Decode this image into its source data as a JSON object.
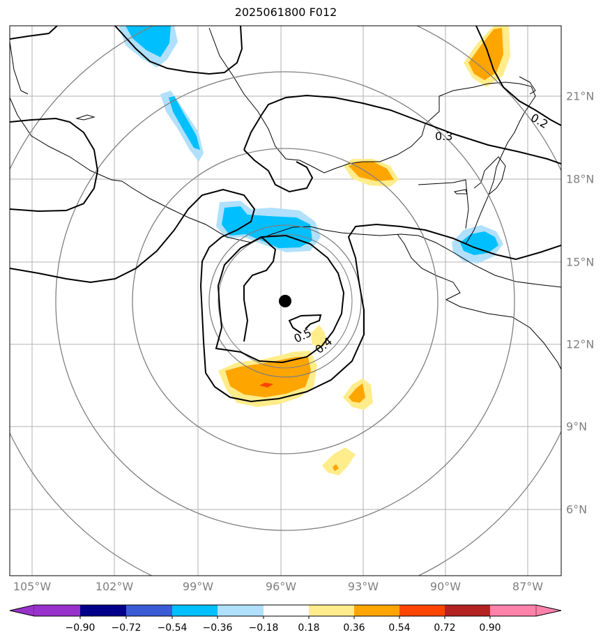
{
  "title": "2025061800 F012",
  "lon_labels": [
    "105°W",
    "102°W",
    "99°W",
    "96°W",
    "93°W",
    "90°W",
    "87°W"
  ],
  "lat_labels": [
    "21°N",
    "18°N",
    "15°N",
    "12°N",
    "9°N",
    "6°N"
  ],
  "contour_labels": [
    "0.2",
    "0.3",
    "0.5",
    "0.4"
  ],
  "colorbar": {
    "ticks": [
      "−0.90",
      "−0.72",
      "−0.54",
      "−0.36",
      "−0.18",
      "0.18",
      "0.36",
      "0.54",
      "0.72",
      "0.90"
    ],
    "colors": [
      "#9932cc",
      "#00008b",
      "#3b5bd6",
      "#00bfff",
      "#b0e0fb",
      "#ffffff",
      "#ffec8b",
      "#ffa500",
      "#ff4500",
      "#b22222",
      "#ff82ab"
    ]
  },
  "storm_center": {
    "lat": 13.5,
    "lon": -95.8
  }
}
